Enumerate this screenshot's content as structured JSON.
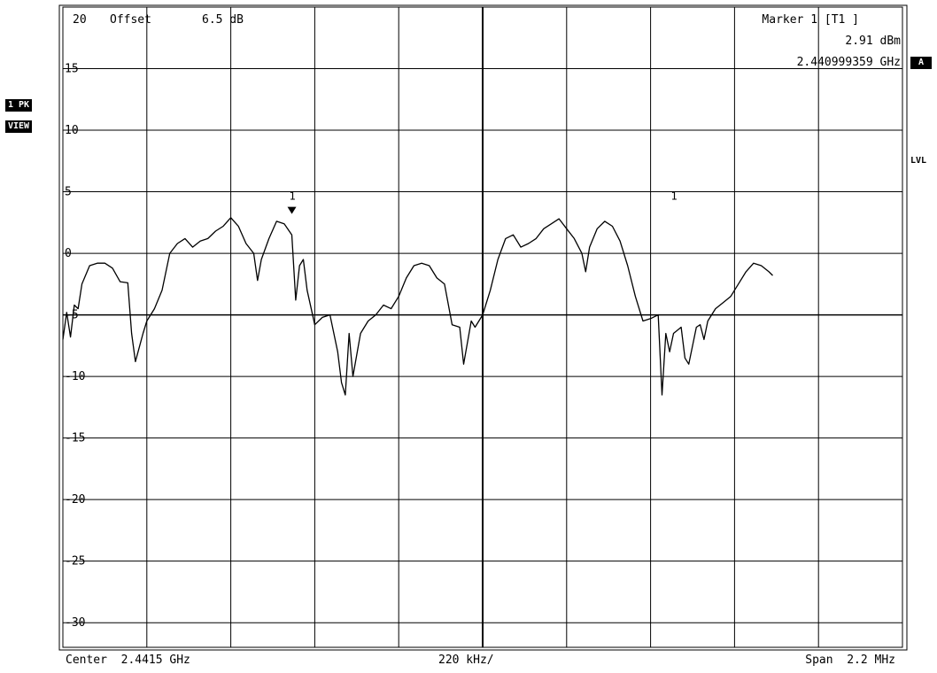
{
  "header": {
    "ref_level": "20",
    "offset_label": "Offset",
    "offset_value": "6.5 dB",
    "marker_title": "Marker 1 [T1 ]",
    "marker_level": "2.91 dBm",
    "marker_freq": "2.440999359 GHz"
  },
  "side": {
    "trace_badge": "1 PK",
    "view_badge": "VIEW",
    "a_badge": "A",
    "lvl_label": "LVL"
  },
  "footer": {
    "center": "Center  2.4415 GHz",
    "per_div": "220 kHz/",
    "span": "Span  2.2 MHz"
  },
  "chart_data": {
    "type": "line",
    "title": "",
    "xlabel": "",
    "ylabel": "",
    "x_unit": "GHz",
    "y_unit": "dBm",
    "xlim": [
      2.4404,
      2.4426
    ],
    "ylim": [
      -32,
      20
    ],
    "y_ticks": [
      15,
      10,
      5,
      0,
      -5,
      -10,
      -15,
      -20,
      -25,
      -30
    ],
    "y_tick_labels": [
      "15",
      "10",
      "5",
      "0",
      "-5",
      "-10",
      "-15",
      "-20",
      "-25",
      "-30"
    ],
    "grid": true,
    "markers": [
      {
        "label": "1",
        "x": 2.441,
        "y": 2.91,
        "filled": true
      },
      {
        "label": "1",
        "x": 2.442,
        "y": 2.91,
        "filled": false
      }
    ],
    "series": [
      {
        "values": [
          [
            2.4404,
            -7.0
          ],
          [
            2.44041,
            -4.8
          ],
          [
            2.44042,
            -6.8
          ],
          [
            2.44043,
            -4.2
          ],
          [
            2.44044,
            -4.5
          ],
          [
            2.44045,
            -2.5
          ],
          [
            2.44047,
            -1.0
          ],
          [
            2.44049,
            -0.8
          ],
          [
            2.44051,
            -0.8
          ],
          [
            2.44053,
            -1.2
          ],
          [
            2.44055,
            -2.3
          ],
          [
            2.44057,
            -2.4
          ],
          [
            2.44058,
            -6.5
          ],
          [
            2.44059,
            -8.8
          ],
          [
            2.44061,
            -6.5
          ],
          [
            2.44062,
            -5.5
          ],
          [
            2.44064,
            -4.5
          ],
          [
            2.44066,
            -3.0
          ],
          [
            2.44068,
            0.0
          ],
          [
            2.4407,
            0.8
          ],
          [
            2.44072,
            1.2
          ],
          [
            2.44074,
            0.5
          ],
          [
            2.44076,
            1.0
          ],
          [
            2.44078,
            1.2
          ],
          [
            2.4408,
            1.8
          ],
          [
            2.44082,
            2.2
          ],
          [
            2.44084,
            2.9
          ],
          [
            2.44086,
            2.2
          ],
          [
            2.44088,
            0.8
          ],
          [
            2.4409,
            0.0
          ],
          [
            2.44091,
            -2.2
          ],
          [
            2.44092,
            -0.5
          ],
          [
            2.44094,
            1.2
          ],
          [
            2.44096,
            2.6
          ],
          [
            2.44098,
            2.4
          ],
          [
            2.441,
            1.5
          ],
          [
            2.44101,
            -3.8
          ],
          [
            2.44102,
            -1.0
          ],
          [
            2.44103,
            -0.5
          ],
          [
            2.44104,
            -3.0
          ],
          [
            2.44106,
            -5.8
          ],
          [
            2.44108,
            -5.2
          ],
          [
            2.4411,
            -5.0
          ],
          [
            2.44112,
            -8.0
          ],
          [
            2.44113,
            -10.5
          ],
          [
            2.44114,
            -11.5
          ],
          [
            2.44115,
            -6.5
          ],
          [
            2.44116,
            -10.0
          ],
          [
            2.44118,
            -6.5
          ],
          [
            2.4412,
            -5.5
          ],
          [
            2.44122,
            -5.0
          ],
          [
            2.44124,
            -4.2
          ],
          [
            2.44126,
            -4.5
          ],
          [
            2.44128,
            -3.5
          ],
          [
            2.4413,
            -2.0
          ],
          [
            2.44132,
            -1.0
          ],
          [
            2.44134,
            -0.8
          ],
          [
            2.44136,
            -1.0
          ],
          [
            2.44138,
            -2.0
          ],
          [
            2.4414,
            -2.5
          ],
          [
            2.44142,
            -5.8
          ],
          [
            2.44144,
            -6.0
          ],
          [
            2.44145,
            -9.0
          ],
          [
            2.44147,
            -5.5
          ],
          [
            2.44148,
            -6.0
          ],
          [
            2.4415,
            -5.0
          ],
          [
            2.44152,
            -3.0
          ],
          [
            2.44154,
            -0.5
          ],
          [
            2.44156,
            1.2
          ],
          [
            2.44158,
            1.5
          ],
          [
            2.4416,
            0.5
          ],
          [
            2.44162,
            0.8
          ],
          [
            2.44164,
            1.2
          ],
          [
            2.44166,
            2.0
          ],
          [
            2.44168,
            2.4
          ],
          [
            2.4417,
            2.8
          ],
          [
            2.44172,
            2.0
          ],
          [
            2.44174,
            1.2
          ],
          [
            2.44176,
            0.0
          ],
          [
            2.44177,
            -1.5
          ],
          [
            2.44178,
            0.5
          ],
          [
            2.4418,
            2.0
          ],
          [
            2.44182,
            2.6
          ],
          [
            2.44184,
            2.2
          ],
          [
            2.44186,
            1.0
          ],
          [
            2.44188,
            -1.0
          ],
          [
            2.4419,
            -3.5
          ],
          [
            2.44192,
            -5.5
          ],
          [
            2.44194,
            -5.3
          ],
          [
            2.44196,
            -5.0
          ],
          [
            2.44197,
            -11.5
          ],
          [
            2.44198,
            -6.5
          ],
          [
            2.44199,
            -8.0
          ],
          [
            2.442,
            -6.5
          ],
          [
            2.44202,
            -6.0
          ],
          [
            2.44203,
            -8.5
          ],
          [
            2.44204,
            -9.0
          ],
          [
            2.44206,
            -6.0
          ],
          [
            2.44207,
            -5.8
          ],
          [
            2.44208,
            -7.0
          ],
          [
            2.44209,
            -5.5
          ],
          [
            2.44211,
            -4.5
          ],
          [
            2.44213,
            -4.0
          ],
          [
            2.44215,
            -3.5
          ],
          [
            2.44217,
            -2.5
          ],
          [
            2.44219,
            -1.5
          ],
          [
            2.44221,
            -0.8
          ],
          [
            2.44223,
            -1.0
          ],
          [
            2.44225,
            -1.5
          ],
          [
            2.44226,
            -1.8
          ]
        ]
      }
    ]
  }
}
